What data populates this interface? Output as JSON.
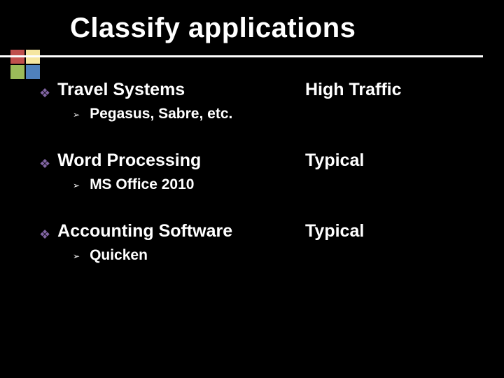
{
  "slide": {
    "title": "Classify applications",
    "background_color": "#000000",
    "text_color": "#ffffff",
    "title_fontsize": 40,
    "body_fontsize": 25,
    "sub_fontsize": 21,
    "diamond_bullet_color": "#8064a2",
    "triangle_bullet_color": "#ffffff",
    "logo_colors": {
      "top_left": "#c0504d",
      "top_right": "#f5e6a0",
      "bottom_left": "#9bbb59",
      "bottom_right": "#4f81bd"
    },
    "items": [
      {
        "label": "Travel Systems",
        "traffic": "High Traffic",
        "sub": "Pegasus, Sabre, etc."
      },
      {
        "label": "Word Processing",
        "traffic": "Typical",
        "sub": "MS Office 2010"
      },
      {
        "label": "Accounting Software",
        "traffic": "Typical",
        "sub": "Quicken"
      }
    ]
  }
}
